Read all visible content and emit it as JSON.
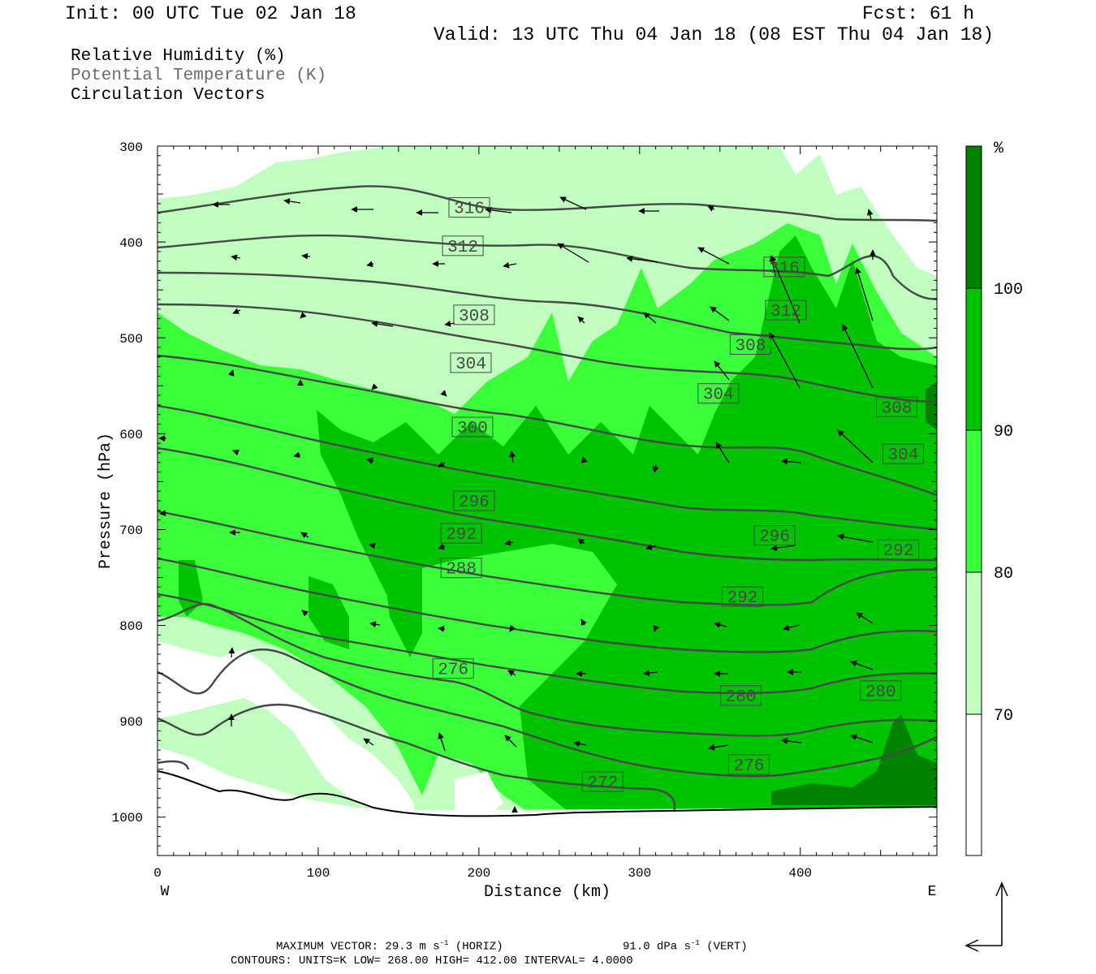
{
  "header": {
    "init": "Init: 00 UTC Tue 02 Jan 18",
    "fcst": "Fcst:   61 h",
    "valid": "Valid: 13 UTC Thu 04 Jan 18 (08 EST Thu 04 Jan 18)"
  },
  "legend": {
    "line1": "Relative Humidity (%)",
    "line2": "Potential Temperature (K)",
    "line3": "Circulation Vectors"
  },
  "footer": {
    "max_vector": "MAXIMUM VECTOR:  29.3 m s",
    "max_vector_horiz": " (HORIZ)",
    "max_vector_vert_val": "91.0 dPa s",
    "max_vector_vert": " (VERT)",
    "sup": "-1",
    "contours": "CONTOURS:  UNITS=K  LOW=  268.00      HIGH=  412.00      INTERVAL=    4.0000"
  },
  "colors": {
    "rh_70_80": "#c1ffc1",
    "rh_80_90": "#3cff3c",
    "rh_90_100": "#00c300",
    "rh_100": "#008200",
    "theta_line": "#474747",
    "terrain": "#000000"
  },
  "chart_data": {
    "type": "contour_cross_section",
    "xlabel": "Distance (km)",
    "ylabel": "Pressure (hPa)",
    "x_ticks": [
      "0",
      "100",
      "200",
      "300",
      "400"
    ],
    "y_ticks": [
      "300",
      "400",
      "500",
      "600",
      "700",
      "800",
      "900",
      "1000"
    ],
    "xlim": [
      0,
      485
    ],
    "ylim": [
      300,
      1040
    ],
    "x_end_labels": {
      "left": "W",
      "right": "E"
    },
    "colorbar": {
      "unit": "%",
      "levels": [
        "70",
        "80",
        "90",
        "100"
      ],
      "colors": [
        "#ffffff",
        "#c1ffc1",
        "#3cff3c",
        "#00c300",
        "#008200"
      ]
    },
    "theta_contour_labels": [
      {
        "value": "316",
        "x": 194,
        "p": 364
      },
      {
        "value": "312",
        "x": 190,
        "p": 404
      },
      {
        "value": "308",
        "x": 197,
        "p": 476
      },
      {
        "value": "304",
        "x": 195,
        "p": 526
      },
      {
        "value": "300",
        "x": 196,
        "p": 593
      },
      {
        "value": "296",
        "x": 197,
        "p": 670
      },
      {
        "value": "292",
        "x": 189,
        "p": 704
      },
      {
        "value": "288",
        "x": 189,
        "p": 740
      },
      {
        "value": "276",
        "x": 184,
        "p": 845
      },
      {
        "value": "272",
        "x": 277,
        "p": 963
      },
      {
        "value": "276",
        "x": 368,
        "p": 945
      },
      {
        "value": "280",
        "x": 363,
        "p": 873
      },
      {
        "value": "280",
        "x": 450,
        "p": 868
      },
      {
        "value": "292",
        "x": 364,
        "p": 770
      },
      {
        "value": "296",
        "x": 384,
        "p": 706
      },
      {
        "value": "292",
        "x": 461,
        "p": 721
      },
      {
        "value": "304",
        "x": 349,
        "p": 558
      },
      {
        "value": "308",
        "x": 369,
        "p": 507
      },
      {
        "value": "312",
        "x": 391,
        "p": 471
      },
      {
        "value": "316",
        "x": 390,
        "p": 426
      },
      {
        "value": "308",
        "x": 460,
        "p": 572
      },
      {
        "value": "304",
        "x": 464,
        "p": 621
      }
    ]
  }
}
